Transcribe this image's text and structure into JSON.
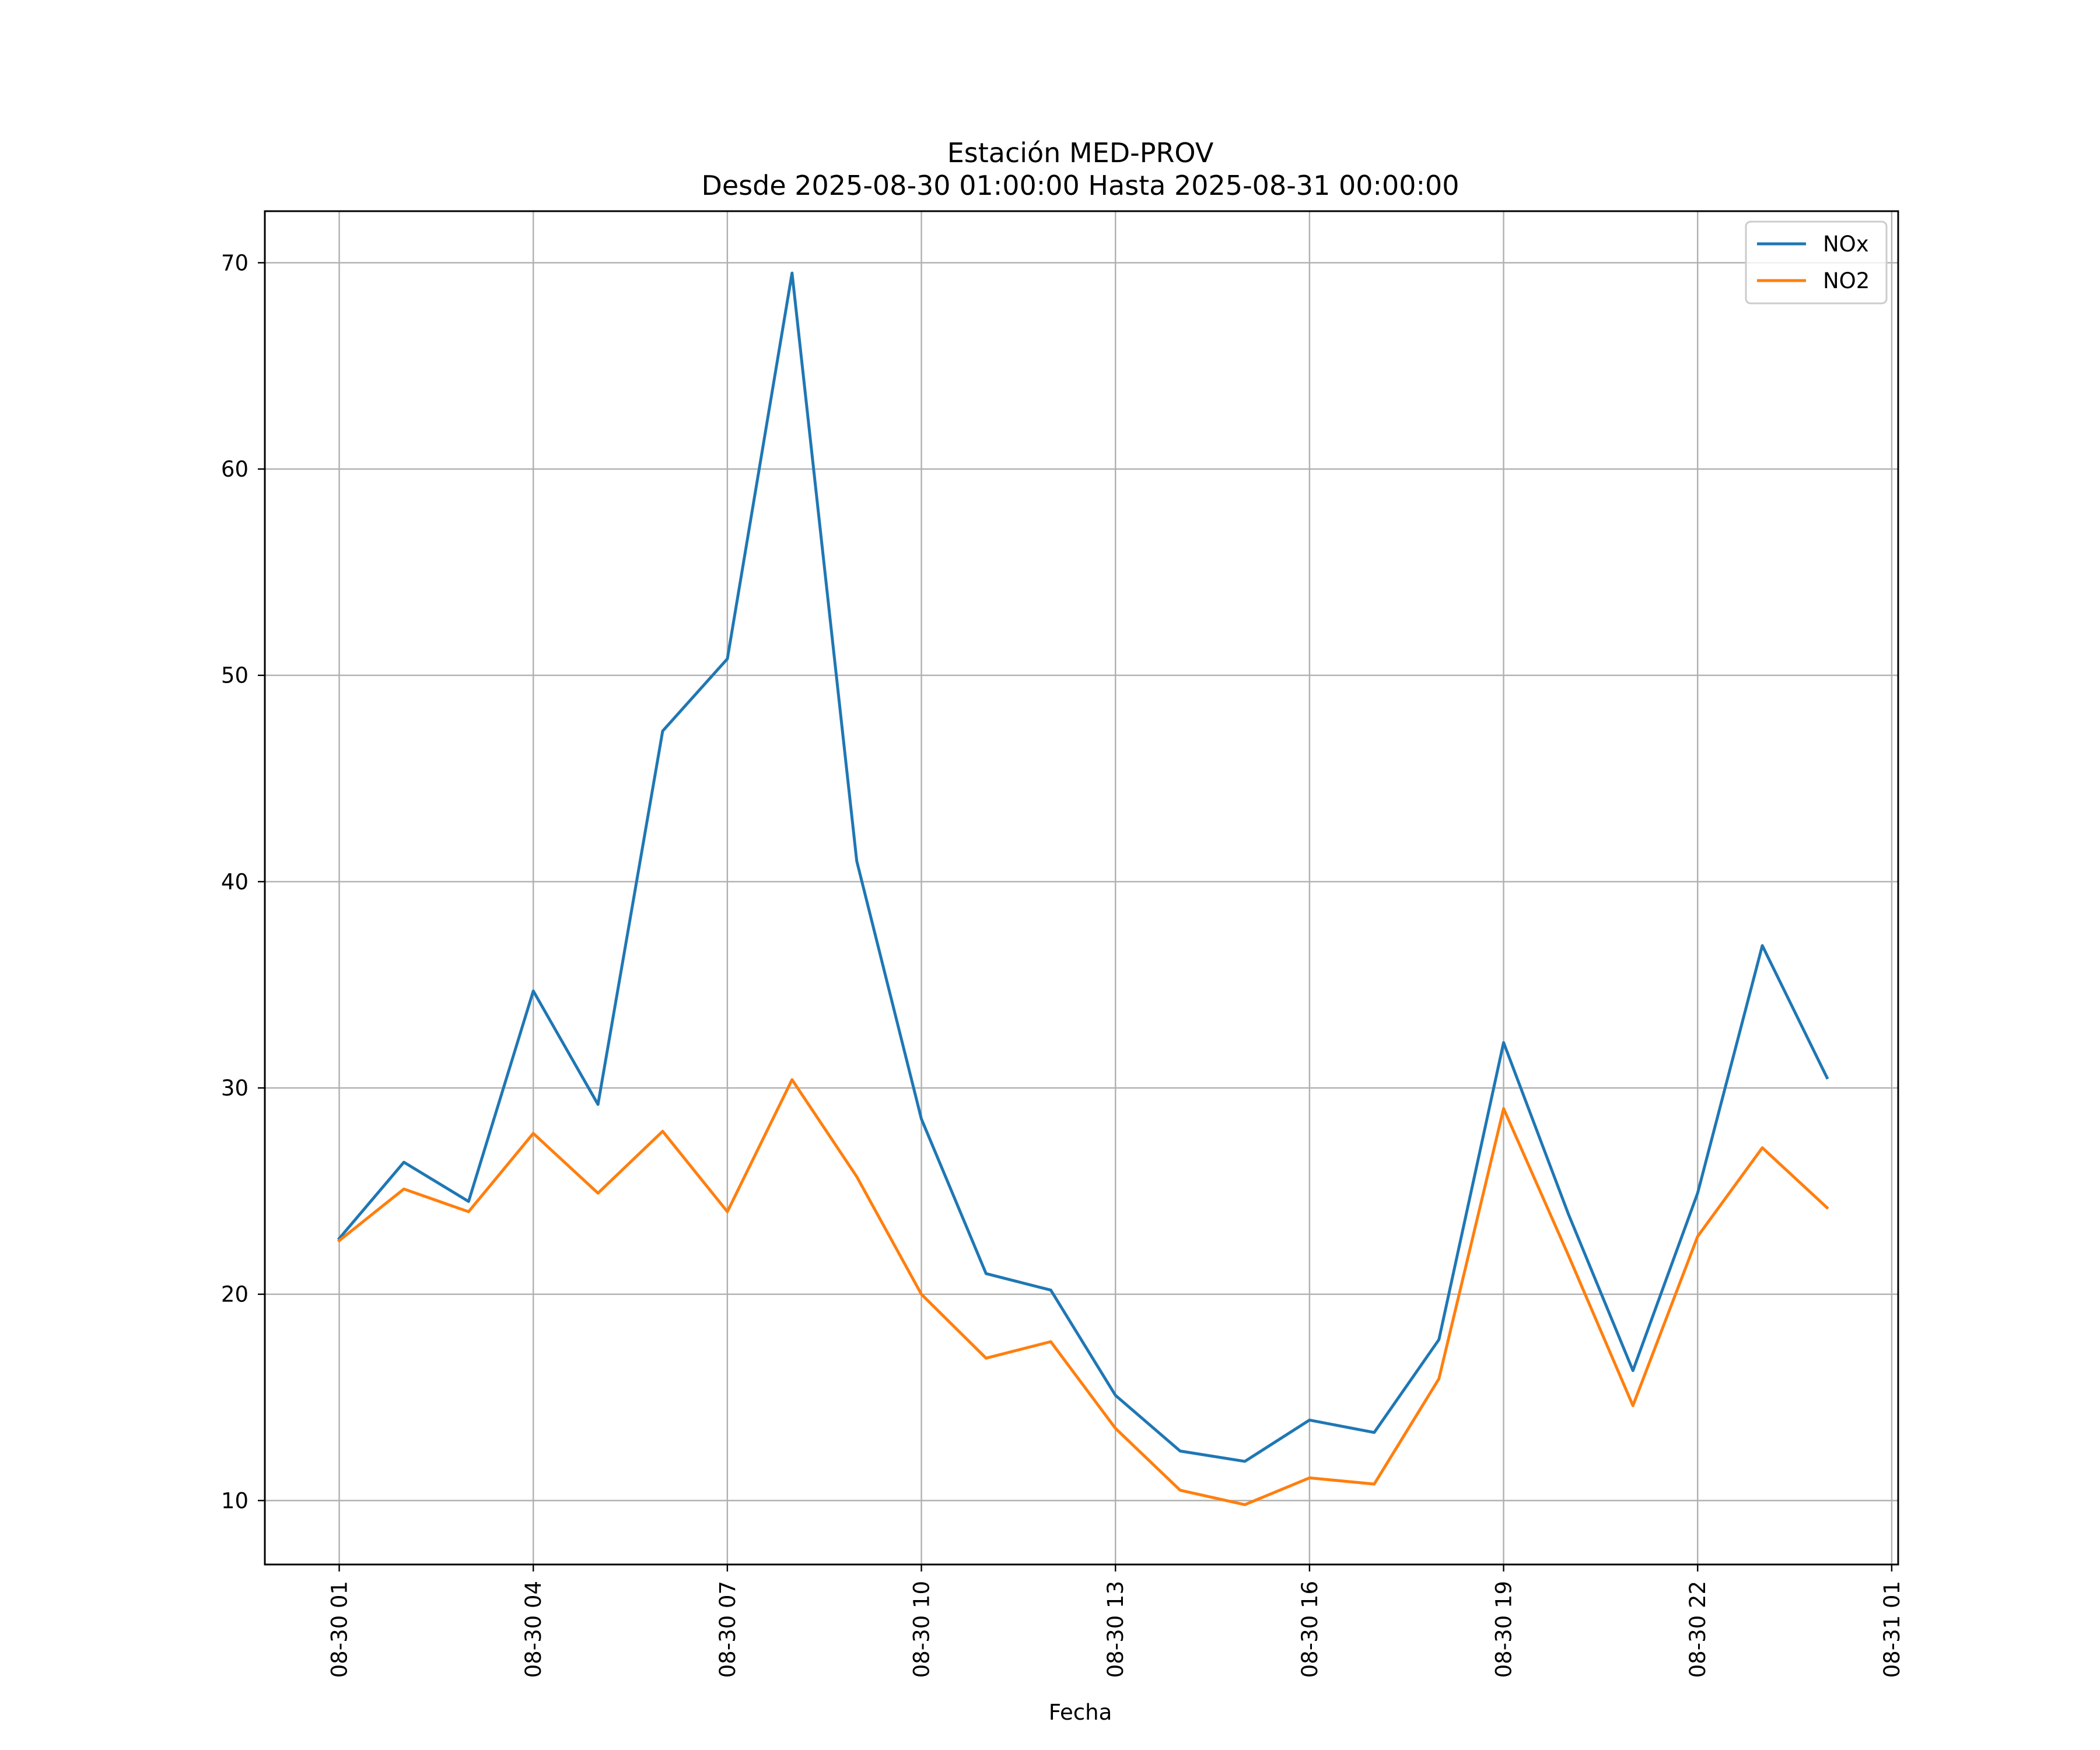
{
  "chart_data": {
    "type": "line",
    "title": "Estación MED-PROV",
    "subtitle": "Desde 2025-08-30 01:00:00 Hasta 2025-08-31 00:00:00",
    "xlabel": "Fecha",
    "ylabel": "",
    "grid": true,
    "legend_position": "top-right",
    "x_hours": [
      1,
      2,
      3,
      4,
      5,
      6,
      7,
      8,
      9,
      10,
      11,
      12,
      13,
      14,
      15,
      16,
      17,
      18,
      19,
      20,
      21,
      22,
      23,
      24
    ],
    "xlim": [
      -0.15,
      25.1
    ],
    "xticks": [
      {
        "hour": 1,
        "label": "08-30 01"
      },
      {
        "hour": 4,
        "label": "08-30 04"
      },
      {
        "hour": 7,
        "label": "08-30 07"
      },
      {
        "hour": 10,
        "label": "08-30 10"
      },
      {
        "hour": 13,
        "label": "08-30 13"
      },
      {
        "hour": 16,
        "label": "08-30 16"
      },
      {
        "hour": 19,
        "label": "08-30 19"
      },
      {
        "hour": 22,
        "label": "08-30 22"
      },
      {
        "hour": 25,
        "label": "08-31 01"
      }
    ],
    "ylim": [
      6.9,
      72.5
    ],
    "yticks": [
      {
        "value": 10,
        "label": "10"
      },
      {
        "value": 20,
        "label": "20"
      },
      {
        "value": 30,
        "label": "30"
      },
      {
        "value": 40,
        "label": "40"
      },
      {
        "value": 50,
        "label": "50"
      },
      {
        "value": 60,
        "label": "60"
      },
      {
        "value": 70,
        "label": "70"
      }
    ],
    "series": [
      {
        "name": "NOx",
        "color": "#1f77b4",
        "values": [
          22.7,
          26.4,
          24.5,
          34.7,
          29.2,
          47.3,
          50.8,
          69.5,
          41.0,
          28.5,
          21.0,
          20.2,
          15.1,
          12.4,
          11.9,
          13.9,
          13.3,
          17.8,
          32.2,
          23.9,
          16.3,
          24.9,
          36.9,
          30.5
        ]
      },
      {
        "name": "NO2",
        "color": "#ff7f0e",
        "values": [
          22.6,
          25.1,
          24.0,
          27.8,
          24.9,
          27.9,
          24.0,
          30.4,
          25.7,
          20.0,
          16.9,
          17.7,
          13.5,
          10.5,
          9.8,
          11.1,
          10.8,
          15.9,
          29.0,
          21.9,
          14.6,
          22.8,
          27.1,
          24.2
        ]
      }
    ]
  }
}
